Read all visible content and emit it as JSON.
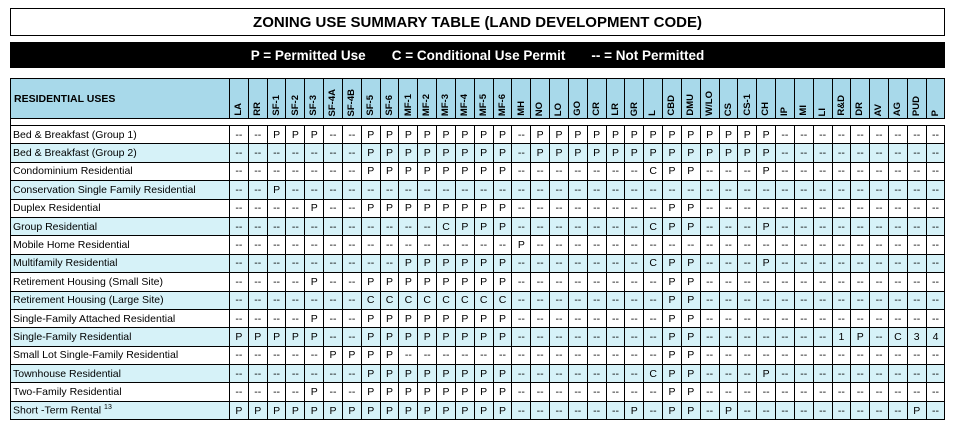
{
  "title": "ZONING USE SUMMARY TABLE (LAND DEVELOPMENT CODE)",
  "legend": [
    {
      "text": "P = Permitted Use"
    },
    {
      "text": "C = Conditional Use Permit"
    },
    {
      "text": "-- = Not Permitted"
    }
  ],
  "table": {
    "category_header": "RESIDENTIAL USES",
    "zones": [
      "LA",
      "RR",
      "SF-1",
      "SF-2",
      "SF-3",
      "SF-4A",
      "SF-4B",
      "SF-5",
      "SF-6",
      "MF-1",
      "MF-2",
      "MF-3",
      "MF-4",
      "MF-5",
      "MF-6",
      "MH",
      "NO",
      "LO",
      "GO",
      "CR",
      "LR",
      "GR",
      "L",
      "CBD",
      "DMU",
      "W/LO",
      "CS",
      "CS-1",
      "CH",
      "IP",
      "MI",
      "LI",
      "R&D",
      "DR",
      "AV",
      "AG",
      "PUD",
      "P"
    ],
    "rows": [
      {
        "use": "Bed & Breakfast (Group 1)",
        "values": [
          "--",
          "--",
          "P",
          "P",
          "P",
          "--",
          "--",
          "P",
          "P",
          "P",
          "P",
          "P",
          "P",
          "P",
          "P",
          "--",
          "P",
          "P",
          "P",
          "P",
          "P",
          "P",
          "P",
          "P",
          "P",
          "P",
          "P",
          "P",
          "P",
          "--",
          "--",
          "--",
          "--",
          "--",
          "--",
          "--",
          "--",
          "--"
        ]
      },
      {
        "use": "Bed & Breakfast (Group 2)",
        "values": [
          "--",
          "--",
          "--",
          "--",
          "--",
          "--",
          "--",
          "P",
          "P",
          "P",
          "P",
          "P",
          "P",
          "P",
          "P",
          "--",
          "P",
          "P",
          "P",
          "P",
          "P",
          "P",
          "P",
          "P",
          "P",
          "P",
          "P",
          "P",
          "P",
          "--",
          "--",
          "--",
          "--",
          "--",
          "--",
          "--",
          "--",
          "--"
        ]
      },
      {
        "use": "Condominium Residential",
        "values": [
          "--",
          "--",
          "--",
          "--",
          "--",
          "--",
          "--",
          "P",
          "P",
          "P",
          "P",
          "P",
          "P",
          "P",
          "P",
          "--",
          "--",
          "--",
          "--",
          "--",
          "--",
          "--",
          "C",
          "P",
          "P",
          "--",
          "--",
          "--",
          "P",
          "--",
          "--",
          "--",
          "--",
          "--",
          "--",
          "--",
          "--",
          "--"
        ]
      },
      {
        "use": "Conservation Single Family Residential",
        "values": [
          "--",
          "--",
          "P",
          "--",
          "--",
          "--",
          "--",
          "--",
          "--",
          "--",
          "--",
          "--",
          "--",
          "--",
          "--",
          "--",
          "--",
          "--",
          "--",
          "--",
          "--",
          "--",
          "--",
          "--",
          "--",
          "--",
          "--",
          "--",
          "--",
          "--",
          "--",
          "--",
          "--",
          "--",
          "--",
          "--",
          "--",
          "--"
        ]
      },
      {
        "use": "Duplex Residential",
        "values": [
          "--",
          "--",
          "--",
          "--",
          "P",
          "--",
          "--",
          "P",
          "P",
          "P",
          "P",
          "P",
          "P",
          "P",
          "P",
          "--",
          "--",
          "--",
          "--",
          "--",
          "--",
          "--",
          "--",
          "P",
          "P",
          "--",
          "--",
          "--",
          "--",
          "--",
          "--",
          "--",
          "--",
          "--",
          "--",
          "--",
          "--",
          "--"
        ]
      },
      {
        "use": "Group Residential",
        "values": [
          "--",
          "--",
          "--",
          "--",
          "--",
          "--",
          "--",
          "--",
          "--",
          "--",
          "--",
          "C",
          "P",
          "P",
          "P",
          "--",
          "--",
          "--",
          "--",
          "--",
          "--",
          "--",
          "C",
          "P",
          "P",
          "--",
          "--",
          "--",
          "P",
          "--",
          "--",
          "--",
          "--",
          "--",
          "--",
          "--",
          "--",
          "--"
        ]
      },
      {
        "use": "Mobile Home Residential",
        "values": [
          "--",
          "--",
          "--",
          "--",
          "--",
          "--",
          "--",
          "--",
          "--",
          "--",
          "--",
          "--",
          "--",
          "--",
          "--",
          "P",
          "--",
          "--",
          "--",
          "--",
          "--",
          "--",
          "--",
          "--",
          "--",
          "--",
          "--",
          "--",
          "--",
          "--",
          "--",
          "--",
          "--",
          "--",
          "--",
          "--",
          "--",
          "--"
        ]
      },
      {
        "use": "Multifamily Residential",
        "values": [
          "--",
          "--",
          "--",
          "--",
          "--",
          "--",
          "--",
          "--",
          "--",
          "P",
          "P",
          "P",
          "P",
          "P",
          "P",
          "--",
          "--",
          "--",
          "--",
          "--",
          "--",
          "--",
          "C",
          "P",
          "P",
          "--",
          "--",
          "--",
          "P",
          "--",
          "--",
          "--",
          "--",
          "--",
          "--",
          "--",
          "--",
          "--"
        ]
      },
      {
        "use": "Retirement Housing (Small Site)",
        "values": [
          "--",
          "--",
          "--",
          "--",
          "P",
          "--",
          "--",
          "P",
          "P",
          "P",
          "P",
          "P",
          "P",
          "P",
          "P",
          "--",
          "--",
          "--",
          "--",
          "--",
          "--",
          "--",
          "--",
          "P",
          "P",
          "--",
          "--",
          "--",
          "--",
          "--",
          "--",
          "--",
          "--",
          "--",
          "--",
          "--",
          "--",
          "--"
        ]
      },
      {
        "use": "Retirement Housing (Large Site)",
        "values": [
          "--",
          "--",
          "--",
          "--",
          "--",
          "--",
          "--",
          "C",
          "C",
          "C",
          "C",
          "C",
          "C",
          "C",
          "C",
          "--",
          "--",
          "--",
          "--",
          "--",
          "--",
          "--",
          "--",
          "P",
          "P",
          "--",
          "--",
          "--",
          "--",
          "--",
          "--",
          "--",
          "--",
          "--",
          "--",
          "--",
          "--",
          "--"
        ]
      },
      {
        "use": "Single-Family Attached Residential",
        "values": [
          "--",
          "--",
          "--",
          "--",
          "P",
          "--",
          "--",
          "P",
          "P",
          "P",
          "P",
          "P",
          "P",
          "P",
          "P",
          "--",
          "--",
          "--",
          "--",
          "--",
          "--",
          "--",
          "--",
          "P",
          "P",
          "--",
          "--",
          "--",
          "--",
          "--",
          "--",
          "--",
          "--",
          "--",
          "--",
          "--",
          "--",
          "--"
        ]
      },
      {
        "use": "Single-Family Residential",
        "values": [
          "P",
          "P",
          "P",
          "P",
          "P",
          "--",
          "--",
          "P",
          "P",
          "P",
          "P",
          "P",
          "P",
          "P",
          "P",
          "--",
          "--",
          "--",
          "--",
          "--",
          "--",
          "--",
          "--",
          "P",
          "P",
          "--",
          "--",
          "--",
          "--",
          "--",
          "--",
          "--",
          "1",
          "P",
          "--",
          "C",
          "3",
          "4"
        ]
      },
      {
        "use": "Small Lot Single-Family Residential",
        "values": [
          "--",
          "--",
          "--",
          "--",
          "--",
          "P",
          "P",
          "P",
          "P",
          "--",
          "--",
          "--",
          "--",
          "--",
          "--",
          "--",
          "--",
          "--",
          "--",
          "--",
          "--",
          "--",
          "--",
          "P",
          "P",
          "--",
          "--",
          "--",
          "--",
          "--",
          "--",
          "--",
          "--",
          "--",
          "--",
          "--",
          "--",
          "--"
        ]
      },
      {
        "use": "Townhouse Residential",
        "values": [
          "--",
          "--",
          "--",
          "--",
          "--",
          "--",
          "--",
          "P",
          "P",
          "P",
          "P",
          "P",
          "P",
          "P",
          "P",
          "--",
          "--",
          "--",
          "--",
          "--",
          "--",
          "--",
          "C",
          "P",
          "P",
          "--",
          "--",
          "--",
          "P",
          "--",
          "--",
          "--",
          "--",
          "--",
          "--",
          "--",
          "--",
          "--"
        ]
      },
      {
        "use": "Two-Family Residential",
        "values": [
          "--",
          "--",
          "--",
          "--",
          "P",
          "--",
          "--",
          "P",
          "P",
          "P",
          "P",
          "P",
          "P",
          "P",
          "P",
          "--",
          "--",
          "--",
          "--",
          "--",
          "--",
          "--",
          "--",
          "P",
          "P",
          "--",
          "--",
          "--",
          "--",
          "--",
          "--",
          "--",
          "--",
          "--",
          "--",
          "--",
          "--",
          "--"
        ]
      },
      {
        "use": "Short -Term Rental",
        "use_sup": "13",
        "values": [
          "P",
          "P",
          "P",
          "P",
          "P",
          "P",
          "P",
          "P",
          "P",
          "P",
          "P",
          "P",
          "P",
          "P",
          "P",
          "--",
          "--",
          "--",
          "--",
          "--",
          "--",
          "P",
          "--",
          "P",
          "P",
          "--",
          "P",
          "--",
          "--",
          "--",
          "--",
          "--",
          "--",
          "--",
          "--",
          "--",
          "P",
          "--"
        ]
      }
    ]
  }
}
